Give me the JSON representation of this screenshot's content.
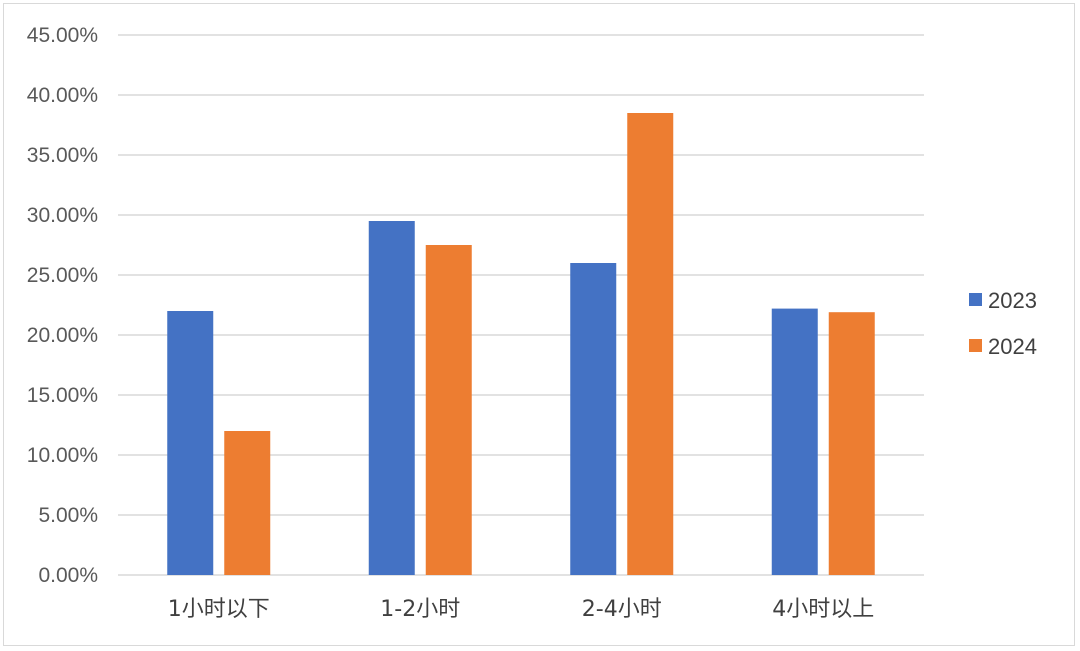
{
  "chart_data": {
    "type": "bar",
    "categories": [
      "1小时以下",
      "1-2小时",
      "2-4小时",
      "4小时以上"
    ],
    "series": [
      {
        "name": "2023",
        "values": [
          22.0,
          29.5,
          26.0,
          22.2
        ],
        "color": "#4472c4"
      },
      {
        "name": "2024",
        "values": [
          12.0,
          27.5,
          38.5,
          21.9
        ],
        "color": "#ed7d31"
      }
    ],
    "y_ticks": [
      "0.00%",
      "5.00%",
      "10.00%",
      "15.00%",
      "20.00%",
      "25.00%",
      "30.00%",
      "35.00%",
      "40.00%",
      "45.00%"
    ],
    "ylim": [
      0,
      45
    ],
    "y_unit": "percent",
    "grid": true,
    "legend_position": "right",
    "axis_color": "#d9d9d9",
    "grid_color": "#d9d9d9"
  }
}
